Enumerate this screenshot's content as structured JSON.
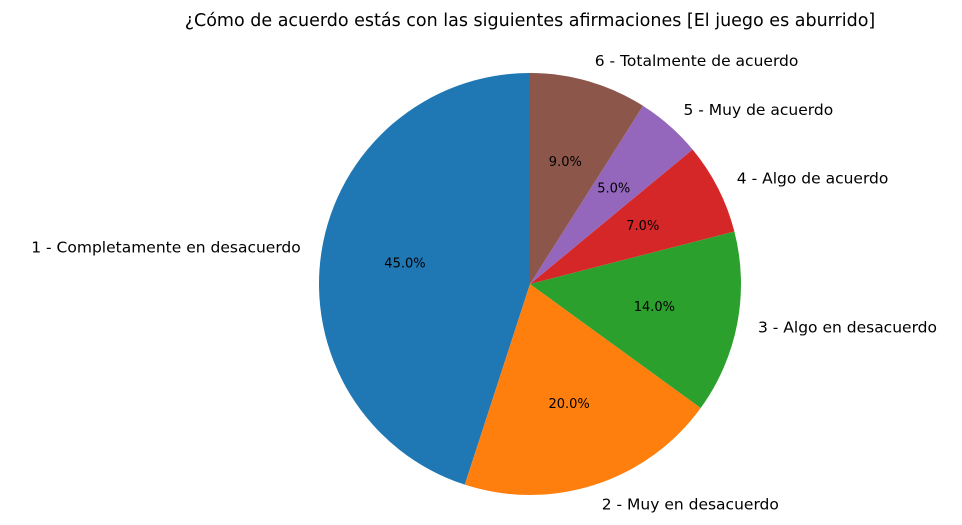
{
  "chart_data": {
    "type": "pie",
    "title": "¿Cómo de acuerdo estás con las siguientes afirmaciones [El juego es aburrido]",
    "categories": [
      "1 - Completamente en desacuerdo",
      "2 - Muy en desacuerdo",
      "3 - Algo en desacuerdo",
      "4 - Algo de acuerdo",
      "5 - Muy de acuerdo",
      "6 - Totalmente de acuerdo"
    ],
    "values": [
      45.0,
      20.0,
      14.0,
      7.0,
      5.0,
      9.0
    ],
    "value_labels": [
      "45.0%",
      "20.0%",
      "14.0%",
      "7.0%",
      "5.0%",
      "9.0%"
    ],
    "colors": [
      "#1f77b4",
      "#ff7f0e",
      "#2ca02c",
      "#d62728",
      "#9467bd",
      "#8c564b"
    ],
    "start_angle": "top",
    "direction": "counterclockwise",
    "legend": "none"
  }
}
